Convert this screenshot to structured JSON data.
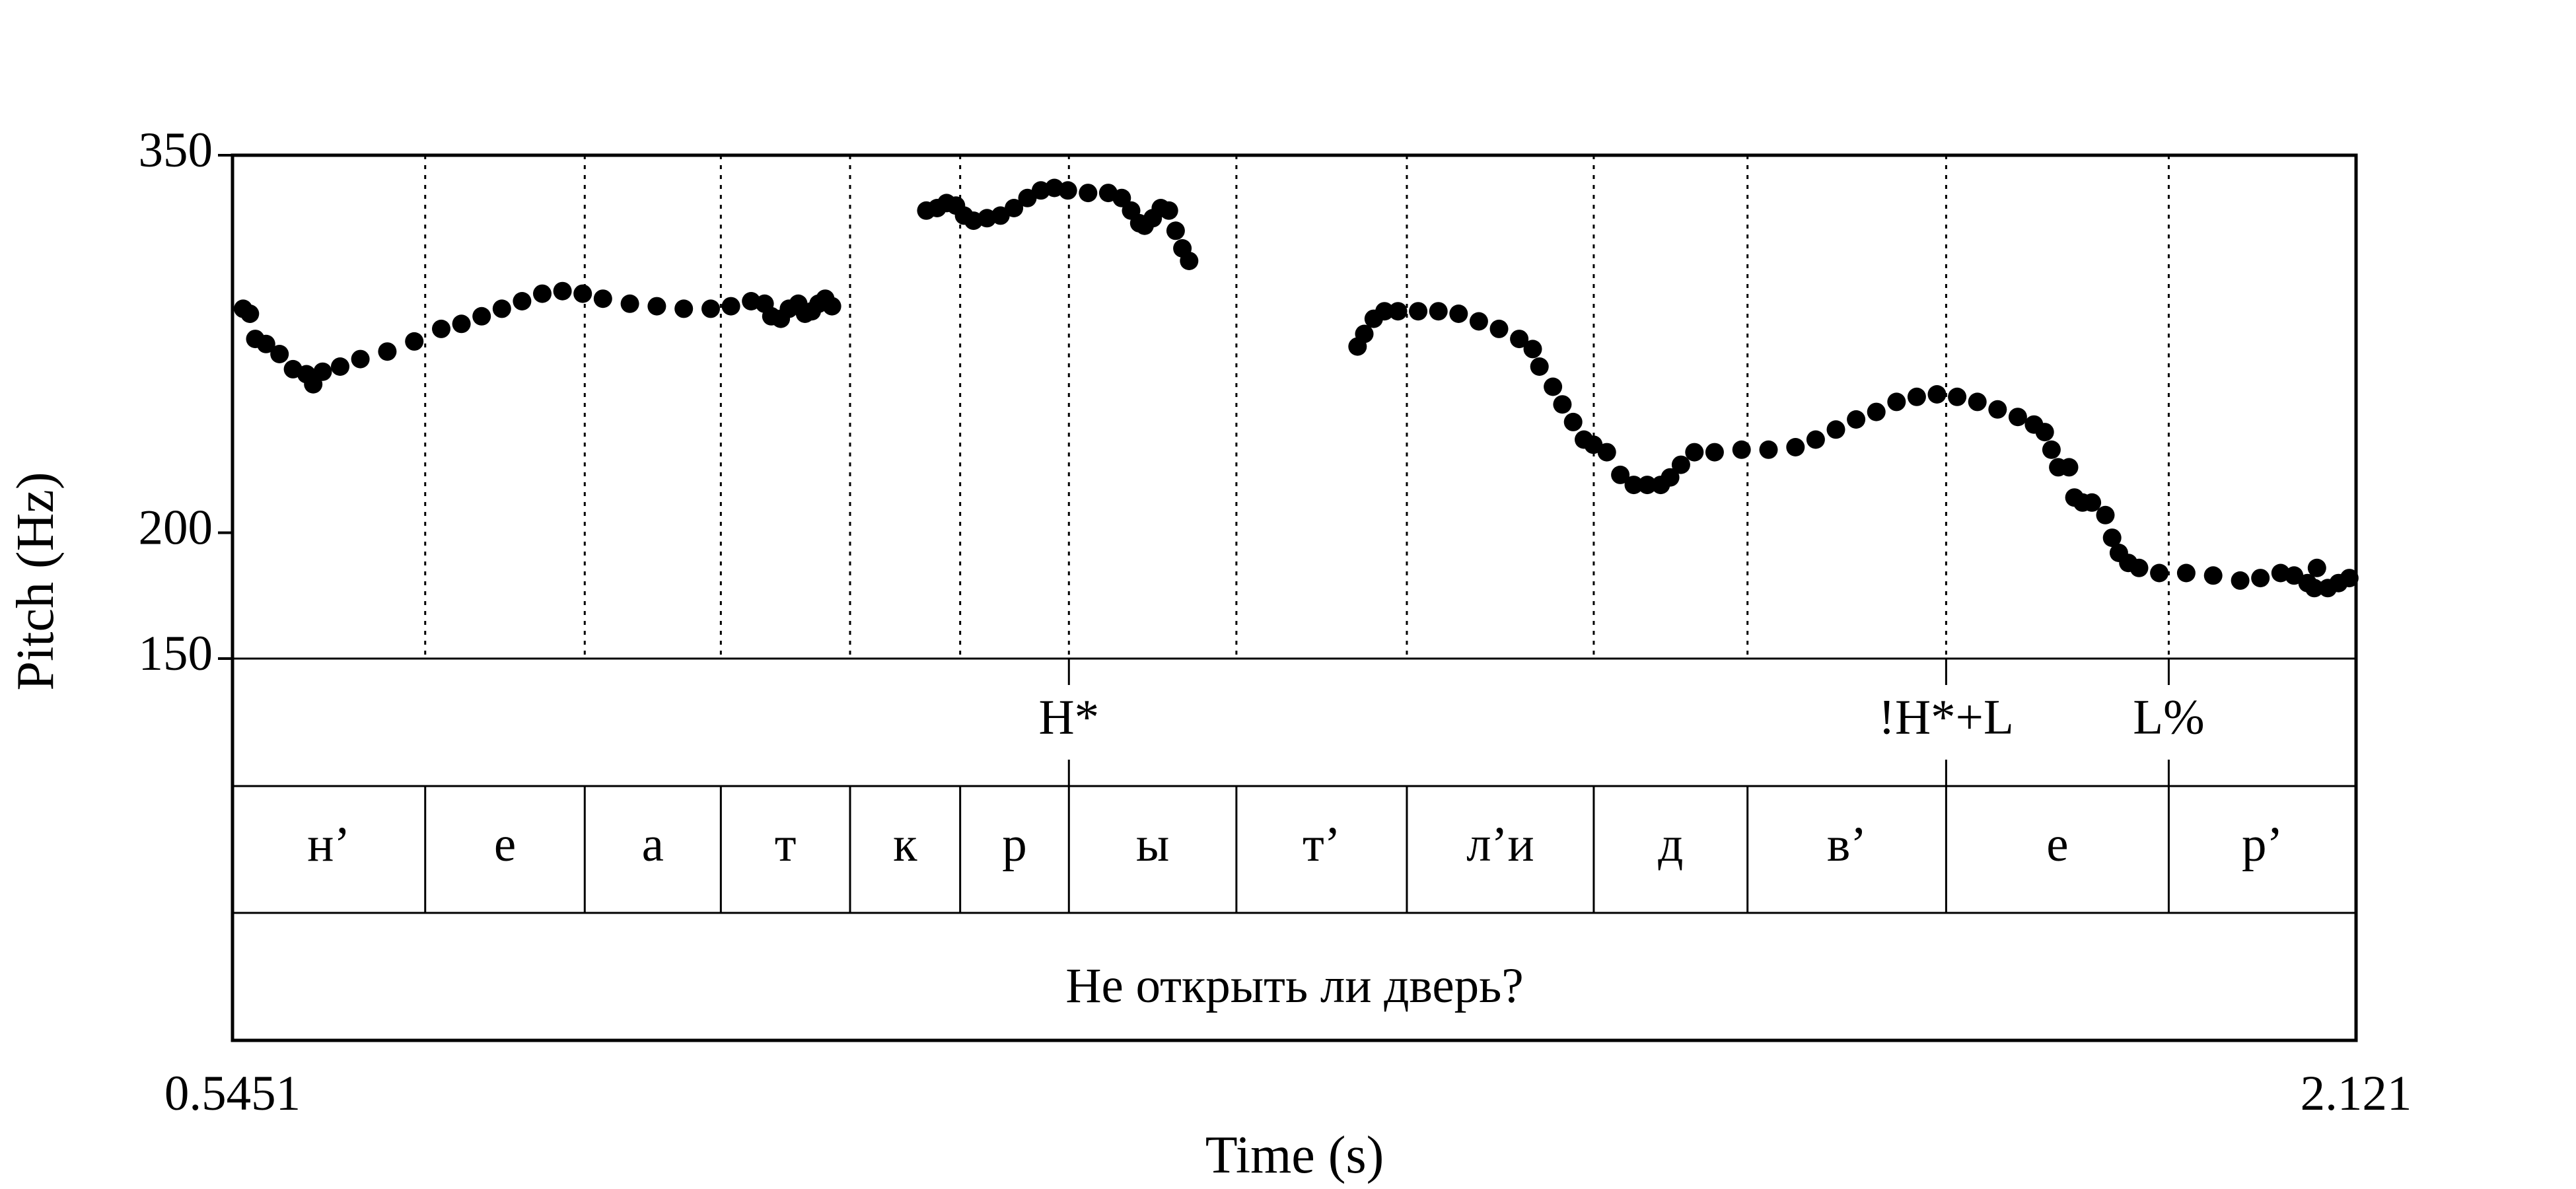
{
  "chart_data": {
    "type": "scatter",
    "title": "",
    "xlabel": "Time (s)",
    "ylabel": "Pitch (Hz)",
    "xlim": [
      0.5451,
      2.121
    ],
    "ylim": [
      150,
      350
    ],
    "x_tick_labels": [
      "0.5451",
      "2.121"
    ],
    "y_ticks": [
      {
        "value": 350,
        "label": "350"
      },
      {
        "value": 200,
        "label": "200"
      },
      {
        "value": 150,
        "label": "150"
      }
    ],
    "grid": false,
    "legend": "none",
    "pitch_series": [
      {
        "x": 0.553,
        "y": 289
      },
      {
        "x": 0.558,
        "y": 287
      },
      {
        "x": 0.562,
        "y": 277
      },
      {
        "x": 0.57,
        "y": 275
      },
      {
        "x": 0.58,
        "y": 271
      },
      {
        "x": 0.59,
        "y": 265
      },
      {
        "x": 0.6,
        "y": 263
      },
      {
        "x": 0.605,
        "y": 259
      },
      {
        "x": 0.612,
        "y": 264
      },
      {
        "x": 0.625,
        "y": 266
      },
      {
        "x": 0.64,
        "y": 269
      },
      {
        "x": 0.66,
        "y": 272
      },
      {
        "x": 0.68,
        "y": 276
      },
      {
        "x": 0.7,
        "y": 281
      },
      {
        "x": 0.715,
        "y": 283
      },
      {
        "x": 0.73,
        "y": 286
      },
      {
        "x": 0.745,
        "y": 289
      },
      {
        "x": 0.76,
        "y": 292
      },
      {
        "x": 0.775,
        "y": 295
      },
      {
        "x": 0.79,
        "y": 296
      },
      {
        "x": 0.805,
        "y": 295
      },
      {
        "x": 0.82,
        "y": 293
      },
      {
        "x": 0.84,
        "y": 291
      },
      {
        "x": 0.86,
        "y": 290
      },
      {
        "x": 0.88,
        "y": 289
      },
      {
        "x": 0.9,
        "y": 289
      },
      {
        "x": 0.915,
        "y": 290
      },
      {
        "x": 0.93,
        "y": 292
      },
      {
        "x": 0.94,
        "y": 291
      },
      {
        "x": 0.945,
        "y": 286
      },
      {
        "x": 0.952,
        "y": 285
      },
      {
        "x": 0.958,
        "y": 289
      },
      {
        "x": 0.965,
        "y": 291
      },
      {
        "x": 0.97,
        "y": 287
      },
      {
        "x": 0.975,
        "y": 288
      },
      {
        "x": 0.98,
        "y": 291
      },
      {
        "x": 0.985,
        "y": 293
      },
      {
        "x": 0.99,
        "y": 290
      },
      {
        "x": 1.06,
        "y": 328
      },
      {
        "x": 1.068,
        "y": 329
      },
      {
        "x": 1.075,
        "y": 331
      },
      {
        "x": 1.082,
        "y": 330
      },
      {
        "x": 1.088,
        "y": 326
      },
      {
        "x": 1.095,
        "y": 324
      },
      {
        "x": 1.105,
        "y": 325
      },
      {
        "x": 1.115,
        "y": 326
      },
      {
        "x": 1.125,
        "y": 329
      },
      {
        "x": 1.135,
        "y": 333
      },
      {
        "x": 1.145,
        "y": 336
      },
      {
        "x": 1.155,
        "y": 337
      },
      {
        "x": 1.165,
        "y": 336
      },
      {
        "x": 1.18,
        "y": 335
      },
      {
        "x": 1.195,
        "y": 335
      },
      {
        "x": 1.205,
        "y": 333
      },
      {
        "x": 1.212,
        "y": 328
      },
      {
        "x": 1.218,
        "y": 323
      },
      {
        "x": 1.222,
        "y": 322
      },
      {
        "x": 1.228,
        "y": 325
      },
      {
        "x": 1.234,
        "y": 329
      },
      {
        "x": 1.24,
        "y": 328
      },
      {
        "x": 1.245,
        "y": 320
      },
      {
        "x": 1.25,
        "y": 313
      },
      {
        "x": 1.255,
        "y": 308
      },
      {
        "x": 1.38,
        "y": 274
      },
      {
        "x": 1.385,
        "y": 279
      },
      {
        "x": 1.392,
        "y": 285
      },
      {
        "x": 1.4,
        "y": 288
      },
      {
        "x": 1.41,
        "y": 288
      },
      {
        "x": 1.425,
        "y": 288
      },
      {
        "x": 1.44,
        "y": 288
      },
      {
        "x": 1.455,
        "y": 287
      },
      {
        "x": 1.47,
        "y": 284
      },
      {
        "x": 1.485,
        "y": 281
      },
      {
        "x": 1.5,
        "y": 277
      },
      {
        "x": 1.51,
        "y": 273
      },
      {
        "x": 1.515,
        "y": 266
      },
      {
        "x": 1.525,
        "y": 258
      },
      {
        "x": 1.532,
        "y": 251
      },
      {
        "x": 1.54,
        "y": 244
      },
      {
        "x": 1.548,
        "y": 237
      },
      {
        "x": 1.555,
        "y": 235
      },
      {
        "x": 1.565,
        "y": 232
      },
      {
        "x": 1.575,
        "y": 223
      },
      {
        "x": 1.585,
        "y": 219
      },
      {
        "x": 1.595,
        "y": 219
      },
      {
        "x": 1.605,
        "y": 219
      },
      {
        "x": 1.612,
        "y": 222
      },
      {
        "x": 1.62,
        "y": 227
      },
      {
        "x": 1.63,
        "y": 232
      },
      {
        "x": 1.645,
        "y": 232
      },
      {
        "x": 1.665,
        "y": 233
      },
      {
        "x": 1.685,
        "y": 233
      },
      {
        "x": 1.705,
        "y": 234
      },
      {
        "x": 1.72,
        "y": 237
      },
      {
        "x": 1.735,
        "y": 241
      },
      {
        "x": 1.75,
        "y": 245
      },
      {
        "x": 1.765,
        "y": 248
      },
      {
        "x": 1.78,
        "y": 252
      },
      {
        "x": 1.795,
        "y": 254
      },
      {
        "x": 1.81,
        "y": 255
      },
      {
        "x": 1.825,
        "y": 254
      },
      {
        "x": 1.84,
        "y": 252
      },
      {
        "x": 1.855,
        "y": 249
      },
      {
        "x": 1.87,
        "y": 246
      },
      {
        "x": 1.882,
        "y": 243
      },
      {
        "x": 1.89,
        "y": 240
      },
      {
        "x": 1.895,
        "y": 233
      },
      {
        "x": 1.9,
        "y": 226
      },
      {
        "x": 1.908,
        "y": 226
      },
      {
        "x": 1.912,
        "y": 214
      },
      {
        "x": 1.918,
        "y": 212
      },
      {
        "x": 1.925,
        "y": 212
      },
      {
        "x": 1.935,
        "y": 207
      },
      {
        "x": 1.94,
        "y": 198
      },
      {
        "x": 1.945,
        "y": 192
      },
      {
        "x": 1.952,
        "y": 188
      },
      {
        "x": 1.96,
        "y": 186
      },
      {
        "x": 1.975,
        "y": 184
      },
      {
        "x": 1.995,
        "y": 184
      },
      {
        "x": 2.015,
        "y": 183
      },
      {
        "x": 2.035,
        "y": 181
      },
      {
        "x": 2.05,
        "y": 182
      },
      {
        "x": 2.065,
        "y": 184
      },
      {
        "x": 2.075,
        "y": 183
      },
      {
        "x": 2.085,
        "y": 180
      },
      {
        "x": 2.09,
        "y": 178
      },
      {
        "x": 2.092,
        "y": 186
      },
      {
        "x": 2.1,
        "y": 178
      },
      {
        "x": 2.108,
        "y": 180
      },
      {
        "x": 2.116,
        "y": 182
      }
    ],
    "boundaries": [
      0.6881,
      0.8065,
      0.9075,
      1.0034,
      1.0851,
      1.1658,
      1.2901,
      1.4166,
      1.5553,
      1.6694,
      1.8168,
      1.982
    ],
    "tones": [
      {
        "label": "H*",
        "time": 1.1658
      },
      {
        "label": "!H*+L",
        "time": 1.8168
      },
      {
        "label": "L%",
        "time": 1.982
      }
    ],
    "segments": [
      "н’",
      "е",
      "а",
      "т",
      "к",
      "р",
      "ы",
      "т’",
      "л’и",
      "д",
      "в’",
      "е",
      "р’"
    ],
    "phrase": "Не открыть ли дверь?"
  }
}
